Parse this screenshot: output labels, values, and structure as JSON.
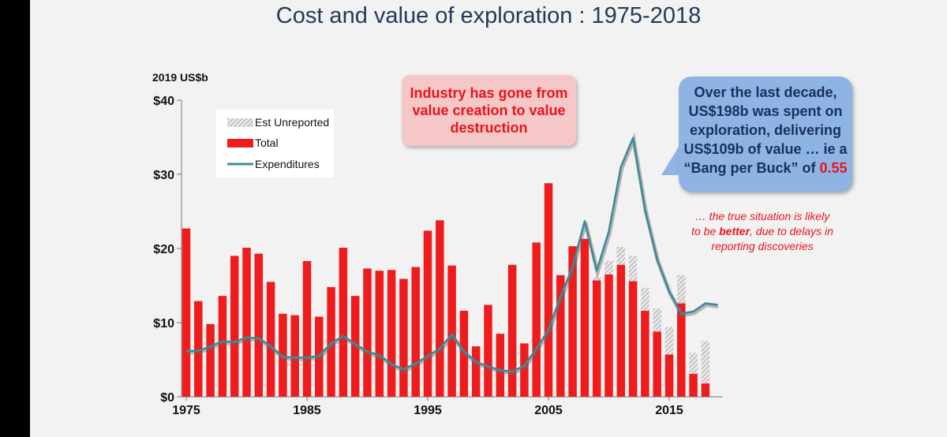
{
  "title": "Cost and value of exploration : 1975-2018",
  "colors": {
    "total": "#ee1c1c",
    "expenditures": "#3c8a9c",
    "unreported_hatch": "#b4b4b4",
    "title": "#23395d",
    "callout_pink_bg": "#f6c7c7",
    "callout_blue_bg": "#8eb4e3"
  },
  "callouts": {
    "pink": "Industry has gone from value creation to value destruction",
    "blue_main": "Over the  last decade, US$198b was spent on exploration, delivering US$109b of value … ie a “Bang per Buck” of",
    "blue_highlight": "0.55",
    "note_prefix": "… the true situation is likely to be",
    "note_emphasis": "better",
    "note_suffix": ", due to delays in reporting discoveries"
  },
  "chart_data": {
    "type": "bar",
    "ylabel": "2019 US$b",
    "ylim": [
      0,
      40
    ],
    "yticks": [
      0,
      10,
      20,
      30,
      40
    ],
    "ytick_labels": [
      "$0",
      "$10",
      "$20",
      "$30",
      "$40"
    ],
    "xticks": [
      1975,
      1985,
      1995,
      2005,
      2015
    ],
    "legend": {
      "position": "top-left",
      "entries": [
        "Est Unreported",
        "Total",
        "Expenditures"
      ]
    },
    "x": [
      1975,
      1976,
      1977,
      1978,
      1979,
      1980,
      1981,
      1982,
      1983,
      1984,
      1985,
      1986,
      1987,
      1988,
      1989,
      1990,
      1991,
      1992,
      1993,
      1994,
      1995,
      1996,
      1997,
      1998,
      1999,
      2000,
      2001,
      2002,
      2003,
      2004,
      2005,
      2006,
      2007,
      2008,
      2009,
      2010,
      2011,
      2012,
      2013,
      2014,
      2015,
      2016,
      2017,
      2018
    ],
    "series": [
      {
        "name": "Total",
        "kind": "bar",
        "values": [
          22.7,
          12.9,
          9.8,
          13.6,
          19.0,
          20.1,
          19.3,
          15.5,
          11.2,
          11.0,
          18.3,
          10.8,
          14.8,
          20.1,
          13.6,
          17.3,
          17.0,
          17.1,
          15.9,
          17.5,
          22.4,
          23.8,
          17.7,
          11.6,
          6.8,
          12.4,
          8.5,
          17.8,
          7.2,
          20.8,
          28.8,
          16.4,
          20.3,
          21.3,
          15.7,
          16.5,
          17.8,
          15.6,
          11.6,
          8.8,
          5.7,
          12.6,
          3.1,
          1.8
        ]
      },
      {
        "name": "Est Unreported",
        "kind": "bar-stacked",
        "values": [
          0,
          0,
          0,
          0,
          0,
          0,
          0,
          0,
          0,
          0,
          0,
          0,
          0,
          0,
          0,
          0,
          0,
          0,
          0,
          0,
          0,
          0,
          0,
          0,
          0,
          0,
          0,
          0,
          0,
          0,
          0,
          0,
          0,
          0,
          0.4,
          1.8,
          2.4,
          3.4,
          3.1,
          3.1,
          3.7,
          3.8,
          2.8,
          5.7
        ]
      },
      {
        "name": "Expenditures",
        "kind": "line",
        "values": [
          6.2,
          6.2,
          6.8,
          7.5,
          7.4,
          8.0,
          7.9,
          6.8,
          5.4,
          5.3,
          5.3,
          5.5,
          7.2,
          8.2,
          7.1,
          6.1,
          5.6,
          4.4,
          3.7,
          4.5,
          5.5,
          6.5,
          8.4,
          6.1,
          4.7,
          4.1,
          3.6,
          3.4,
          4.2,
          6.5,
          9.0,
          13.5,
          17.5,
          23.7,
          17.0,
          22.3,
          31.0,
          34.9,
          25.2,
          18.5,
          14.2,
          11.2,
          11.5,
          12.6,
          12.4
        ],
        "x": [
          1975,
          1976,
          1977,
          1978,
          1979,
          1980,
          1981,
          1982,
          1983,
          1984,
          1985,
          1986,
          1987,
          1988,
          1989,
          1990,
          1991,
          1992,
          1993,
          1994,
          1995,
          1996,
          1997,
          1998,
          1999,
          2000,
          2001,
          2002,
          2003,
          2004,
          2005,
          2006,
          2007,
          2008,
          2009,
          2010,
          2011,
          2012,
          2013,
          2014,
          2015,
          2016,
          2017,
          2018,
          2019
        ]
      }
    ]
  }
}
